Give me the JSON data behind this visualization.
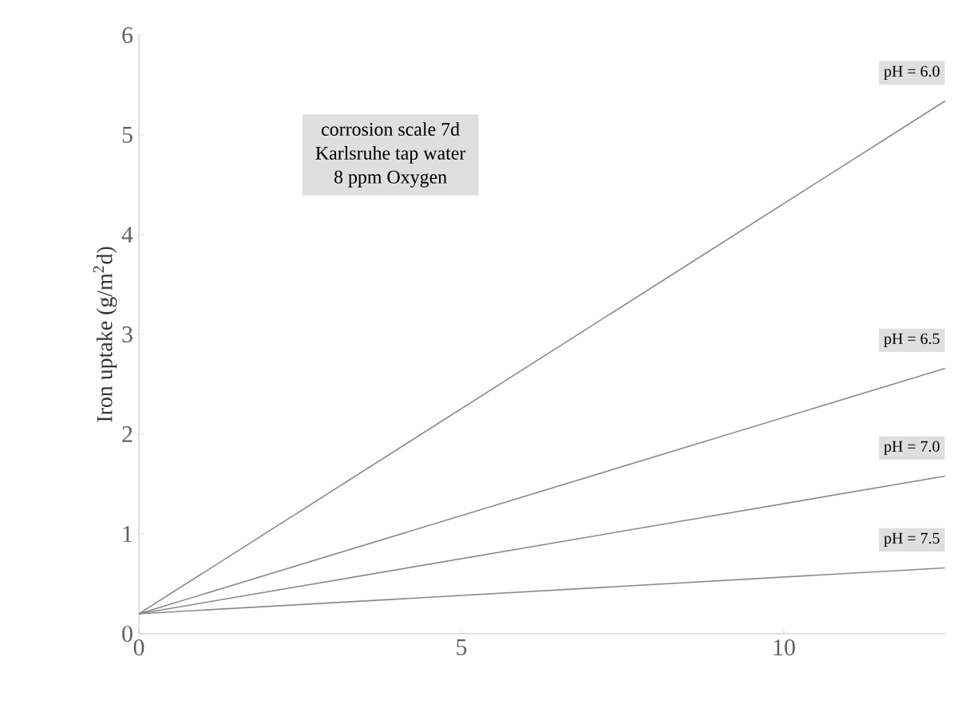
{
  "chart_data": {
    "type": "line",
    "ylabel": "Iron uptake (g/m$^{2}$d)",
    "annotations": [
      "corrosion scale 7d",
      "Karlsruhe tap water",
      "8 ppm Oxygen"
    ],
    "xlim": [
      0,
      12.5
    ],
    "ylim": [
      0,
      6
    ],
    "xticks": [
      0,
      5,
      10
    ],
    "yticks": [
      0,
      1,
      2,
      3,
      4,
      5,
      6
    ],
    "x": [
      0,
      12.5
    ],
    "series": [
      {
        "name": "pH = 6.0",
        "color": "#8a8a8a",
        "values": [
          0.2,
          5.34
        ]
      },
      {
        "name": "pH = 6.5",
        "color": "#8a8a8a",
        "values": [
          0.2,
          2.66
        ]
      },
      {
        "name": "pH = 7.0",
        "color": "#8a8a8a",
        "values": [
          0.2,
          1.58
        ]
      },
      {
        "name": "pH = 7.5",
        "color": "#8a8a8a",
        "values": [
          0.2,
          0.66
        ]
      }
    ],
    "grid": false,
    "legend": false,
    "marker": "none",
    "line_style": "solid"
  }
}
